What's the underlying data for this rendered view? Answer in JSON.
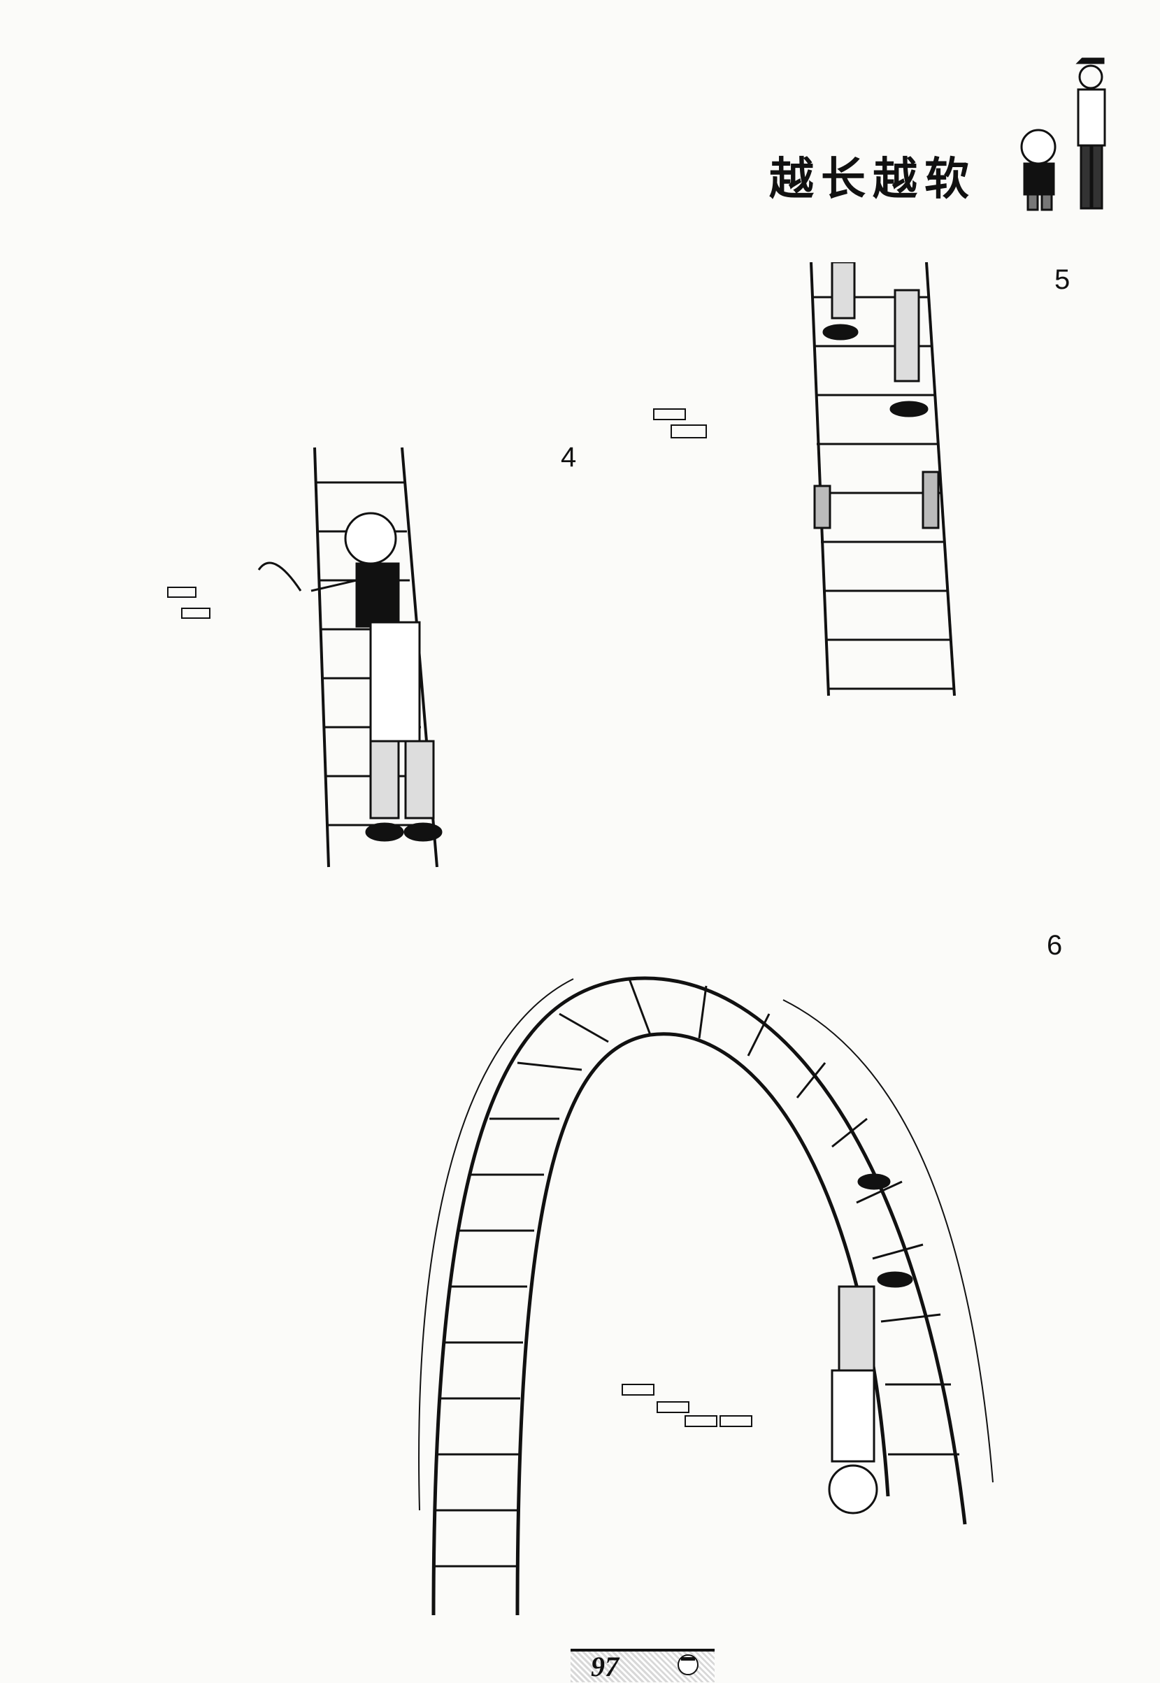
{
  "header": {
    "title": "越长越软"
  },
  "panels": [
    {
      "number": "4",
      "description_icon": "man-climbing-ladder-illustration"
    },
    {
      "number": "5",
      "description_icon": "feet-on-tied-ladder-illustration"
    },
    {
      "number": "6",
      "description_icon": "bent-ladder-arch-illustration"
    }
  ],
  "footer": {
    "page_number": "97"
  },
  "colors": {
    "ink": "#111111",
    "paper": "#fbfbf9"
  }
}
